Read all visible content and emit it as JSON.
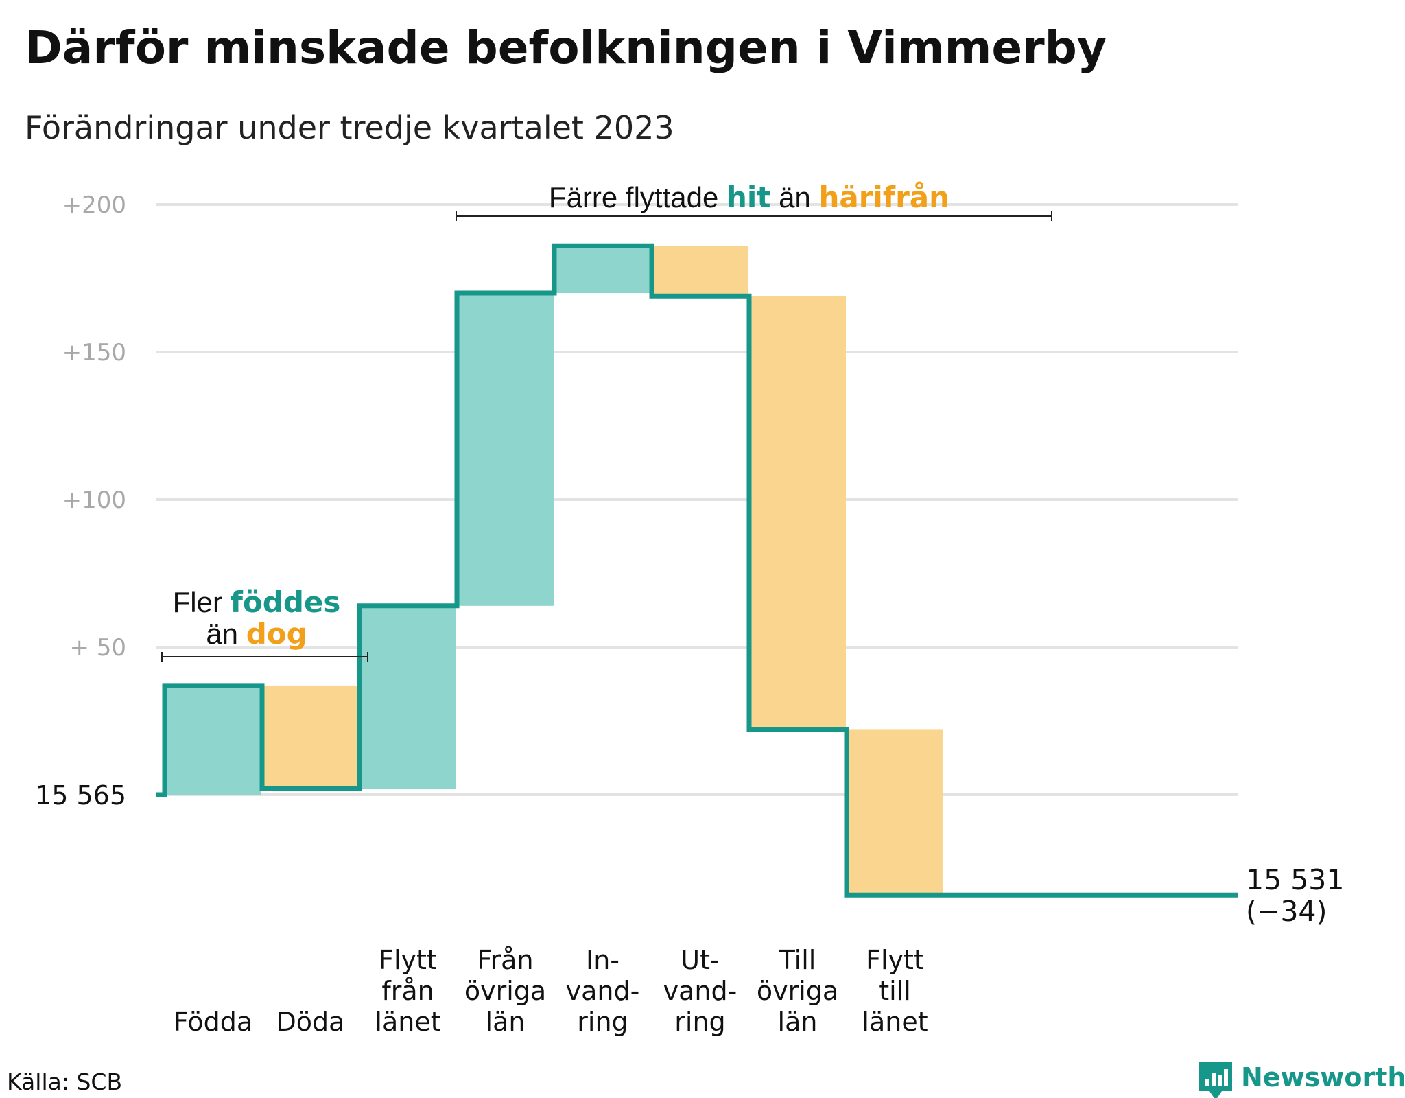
{
  "title": "Därför minskade befolkningen i Vimmerby",
  "subtitle": "Förändringar under tredje kvartalet 2023",
  "source": "Källa: SCB",
  "brand": "Newsworthy",
  "colors": {
    "increase": "#8ed5cd",
    "decrease": "#fad58f",
    "line": "#17968a",
    "teal_text": "#17968a",
    "orange_text": "#f29f1a",
    "grid": "#e3e3e3"
  },
  "chart_data": {
    "type": "waterfall",
    "start_value": 15565,
    "start_label": "15  565",
    "ylim": [
      -35,
      200
    ],
    "yticks": [
      {
        "value": 200,
        "label": "+200"
      },
      {
        "value": 150,
        "label": "+150"
      },
      {
        "value": 100,
        "label": "+100"
      },
      {
        "value": 50,
        "label": "+  50"
      },
      {
        "value": 0,
        "label": ""
      }
    ],
    "steps": [
      {
        "name": "Födda",
        "label_lines": [
          "Födda"
        ],
        "change": 37,
        "direction": "increase"
      },
      {
        "name": "Döda",
        "label_lines": [
          "Döda"
        ],
        "change": -35,
        "direction": "decrease"
      },
      {
        "name": "Flytt från länet",
        "label_lines": [
          "Flytt",
          "från",
          "länet"
        ],
        "change": 62,
        "direction": "increase"
      },
      {
        "name": "Från övriga län",
        "label_lines": [
          "Från",
          "övriga",
          "län"
        ],
        "change": 106,
        "direction": "increase"
      },
      {
        "name": "Invandring",
        "label_lines": [
          "In-",
          "vand-",
          "ring"
        ],
        "change": 16,
        "direction": "increase"
      },
      {
        "name": "Utvandring",
        "label_lines": [
          "Ut-",
          "vand-",
          "ring"
        ],
        "change": -17,
        "direction": "decrease"
      },
      {
        "name": "Till övriga län",
        "label_lines": [
          "Till",
          "övriga",
          "län"
        ],
        "change": -147,
        "direction": "decrease"
      },
      {
        "name": "Flytt till länet",
        "label_lines": [
          "Flytt",
          "till",
          "länet"
        ],
        "change": -56,
        "direction": "decrease"
      }
    ],
    "end_value": 15531,
    "end_label": "15 531",
    "end_change_label": "(−34)",
    "annotations": [
      {
        "lines": [
          [
            {
              "text": "Fler ",
              "style": "plain"
            },
            {
              "text": "föddes",
              "style": "teal"
            }
          ],
          [
            {
              "text": "än ",
              "style": "plain"
            },
            {
              "text": "dog",
              "style": "orange"
            }
          ]
        ]
      },
      {
        "lines": [
          [
            {
              "text": "Färre flyttade ",
              "style": "plain"
            },
            {
              "text": "hit",
              "style": "teal"
            },
            {
              "text": " än ",
              "style": "plain"
            },
            {
              "text": "härifrån",
              "style": "orange"
            }
          ]
        ]
      }
    ]
  }
}
